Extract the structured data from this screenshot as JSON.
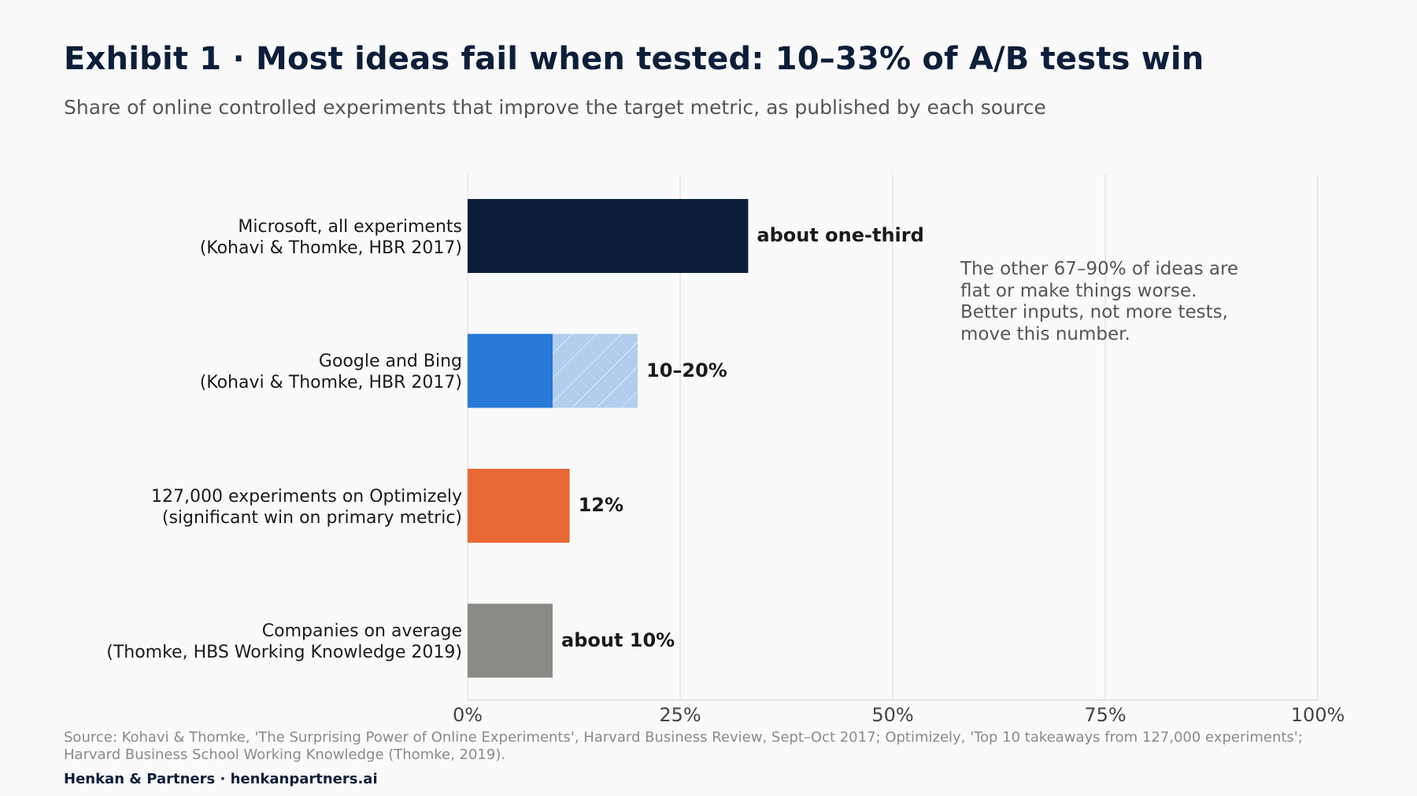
{
  "title": "Exhibit 1 · Most ideas fail when tested: 10–33% of A/B tests win",
  "subtitle": "Share of online controlled experiments that improve the target metric, as published by each source",
  "chart_data": {
    "type": "bar",
    "orientation": "horizontal",
    "xlim": [
      0,
      100
    ],
    "x_ticks": [
      "0%",
      "25%",
      "50%",
      "75%",
      "100%"
    ],
    "grid": true,
    "categories": [
      {
        "line1": "Microsoft, all experiments",
        "line2": "(Kohavi & Thomke, HBR 2017)"
      },
      {
        "line1": "Google and Bing",
        "line2": "(Kohavi & Thomke, HBR 2017)"
      },
      {
        "line1": "127,000 experiments on Optimizely",
        "line2": "(significant win on primary metric)"
      },
      {
        "line1": "Companies on average",
        "line2": "(Thomke, HBS Working Knowledge 2019)"
      }
    ],
    "bars": [
      {
        "low": 33,
        "high": 33,
        "color": "#0c1f3a",
        "label": "about one-third"
      },
      {
        "low": 10,
        "high": 20,
        "color": "#2878d7",
        "range_color": "#b3cdee",
        "label": "10–20%"
      },
      {
        "low": 12,
        "high": 12,
        "color": "#e86836",
        "label": "12%"
      },
      {
        "low": 10,
        "high": 10,
        "color": "#8a8a87",
        "label": "about 10%"
      }
    ]
  },
  "annotation": [
    "The other 67–90% of ideas are",
    "flat or make things worse.",
    "Better inputs, not more tests,",
    "move this number."
  ],
  "source": [
    "Source: Kohavi & Thomke, 'The Surprising Power of Online Experiments', Harvard Business Review, Sept–Oct 2017; Optimizely, 'Top 10 takeaways from 127,000 experiments';",
    "Harvard Business School Working Knowledge (Thomke, 2019)."
  ],
  "footer": "Henkan & Partners · henkanpartners.ai"
}
